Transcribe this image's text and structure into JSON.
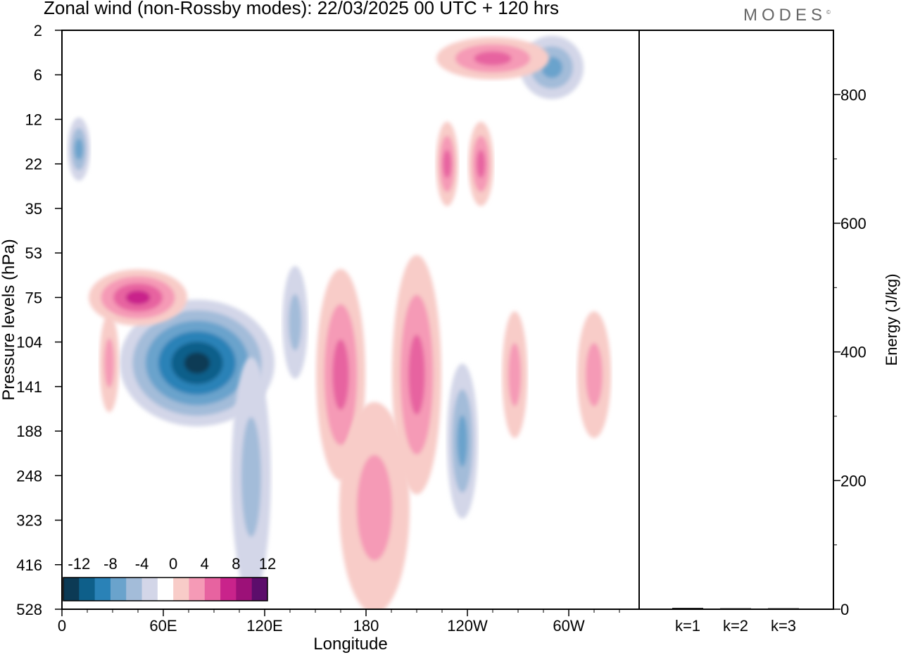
{
  "header": {
    "title": "Zonal wind (non-Rossby modes):  22/03/2025  00 UTC  + 120 hrs",
    "brand": "MODES"
  },
  "colors": {
    "neg": [
      "#0c3a55",
      "#0e5f8a",
      "#2a82b7",
      "#6aa3cc",
      "#a3bcd9",
      "#d3d6e8"
    ],
    "neutral": "#ffffff",
    "pos": [
      "#f8ccc8",
      "#f59ab6",
      "#e763a0",
      "#c9238b",
      "#9c1178",
      "#5c0d6b"
    ]
  },
  "chart_data": [
    {
      "type": "heatmap",
      "title": "Zonal wind (non-Rossby modes):  22/03/2025  00 UTC  + 120 hrs",
      "xlabel": "Longitude",
      "ylabel": "Pressure levels (hPa)",
      "x_ticks": [
        "0",
        "60E",
        "120E",
        "180",
        "120W",
        "60W"
      ],
      "y_ticks": [
        "2",
        "6",
        "12",
        "22",
        "35",
        "53",
        "75",
        "104",
        "141",
        "188",
        "248",
        "323",
        "416",
        "528"
      ],
      "colorbar_labels": [
        "-12",
        "-8",
        "-4",
        "0",
        "4",
        "8",
        "12"
      ],
      "features": [
        {
          "lon": 80,
          "p": 120,
          "value": -13
        },
        {
          "lon": 10,
          "p": 18,
          "value": -6
        },
        {
          "lon": 112,
          "p": 250,
          "value": -5
        },
        {
          "lon": 138,
          "p": 90,
          "value": -3
        },
        {
          "lon": 237,
          "p": 200,
          "value": -6
        },
        {
          "lon": 290,
          "p": 5,
          "value": -7
        },
        {
          "lon": 45,
          "p": 75,
          "value": 8
        },
        {
          "lon": 28,
          "p": 120,
          "value": 5
        },
        {
          "lon": 165,
          "p": 130,
          "value": 6
        },
        {
          "lon": 210,
          "p": 130,
          "value": 7
        },
        {
          "lon": 228,
          "p": 22,
          "value": 6
        },
        {
          "lon": 248,
          "p": 22,
          "value": 6
        },
        {
          "lon": 255,
          "p": 4,
          "value": 7
        },
        {
          "lon": 185,
          "p": 300,
          "value": 3
        },
        {
          "lon": 268,
          "p": 130,
          "value": 5
        },
        {
          "lon": 315,
          "p": 130,
          "value": 5
        }
      ]
    },
    {
      "type": "bar",
      "categories": [
        "k=1",
        "k=2",
        "k=3"
      ],
      "values": [
        2,
        1.5,
        1.5
      ],
      "ylabel": "Energy (J/kg)",
      "ylim": [
        0,
        900
      ],
      "y_ticks": [
        "0",
        "200",
        "400",
        "600",
        "800"
      ]
    }
  ]
}
